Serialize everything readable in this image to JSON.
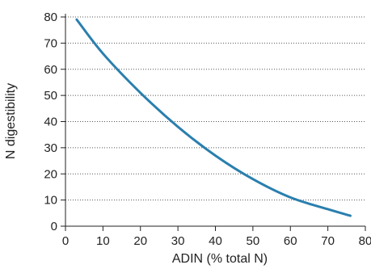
{
  "chart_data": {
    "type": "line",
    "title": "",
    "xlabel": "ADIN (% total N)",
    "ylabel": "N digestibility",
    "xlim": [
      0,
      80
    ],
    "ylim": [
      0,
      80
    ],
    "xticks": [
      0,
      10,
      20,
      30,
      40,
      50,
      60,
      70,
      80
    ],
    "yticks": [
      0,
      10,
      20,
      30,
      40,
      50,
      60,
      70,
      80
    ],
    "grid": "horizontal dotted",
    "legend": "none",
    "series": [
      {
        "color": "#2a7fae",
        "x": [
          3,
          10,
          20,
          30,
          40,
          50,
          60,
          70,
          76
        ],
        "y": [
          79,
          66,
          51,
          38,
          27,
          18,
          11,
          6.5,
          4
        ]
      }
    ]
  }
}
